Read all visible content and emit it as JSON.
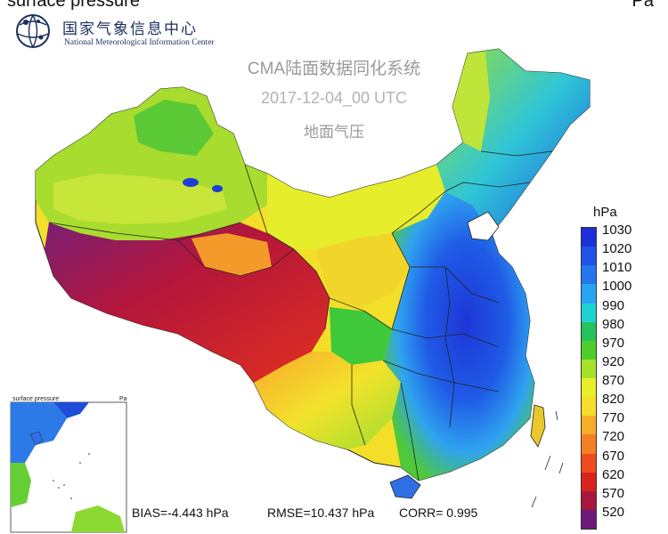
{
  "header": {
    "title_left": "surface pressure",
    "title_right": "Pa"
  },
  "logo": {
    "name_cn": "国家气象信息中心",
    "name_en": "National Meteorological Information Center"
  },
  "map_title": {
    "system": "CMA陆面数据同化系统",
    "datetime": "2017-12-04_00 UTC",
    "variable": "地面气压"
  },
  "legend": {
    "unit": "hPa",
    "items": [
      {
        "label": "1030",
        "color": "#1c2fd8"
      },
      {
        "label": "1020",
        "color": "#1f52e6"
      },
      {
        "label": "1010",
        "color": "#2577ee"
      },
      {
        "label": "1000",
        "color": "#2aa3f2"
      },
      {
        "label": "990",
        "color": "#1fd2d2"
      },
      {
        "label": "980",
        "color": "#26c25c"
      },
      {
        "label": "970",
        "color": "#4fcd2c"
      },
      {
        "label": "920",
        "color": "#a7e22b"
      },
      {
        "label": "870",
        "color": "#e8ee2a"
      },
      {
        "label": "820",
        "color": "#f8dd2c"
      },
      {
        "label": "770",
        "color": "#f7ac2a"
      },
      {
        "label": "720",
        "color": "#f57f24"
      },
      {
        "label": "670",
        "color": "#ef4b20"
      },
      {
        "label": "620",
        "color": "#d9231f"
      },
      {
        "label": "570",
        "color": "#a8183c"
      },
      {
        "label": "520",
        "color": "#6d1a78"
      }
    ]
  },
  "stats": {
    "bias": "BIAS=-4.443 hPa",
    "rmse": "RMSE=10.437 hPa",
    "corr": "CORR= 0.995"
  },
  "inset": {
    "title_left": "surface pressure",
    "title_right": "Pa"
  }
}
